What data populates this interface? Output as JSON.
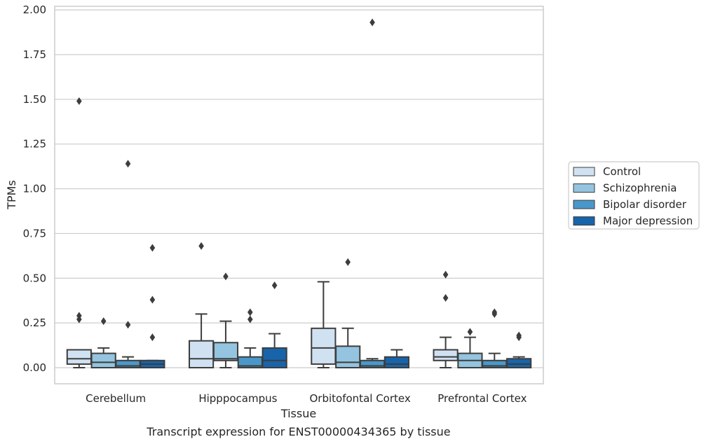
{
  "chart_data": {
    "type": "boxplot",
    "title": "",
    "caption": "Transcript expression for ENST00000434365 by tissue",
    "xlabel": "Tissue",
    "ylabel": "TPMs",
    "ylim": [
      -0.09,
      2.02
    ],
    "yticks": [
      0.0,
      0.25,
      0.5,
      0.75,
      1.0,
      1.25,
      1.5,
      1.75,
      2.0
    ],
    "ytick_labels": [
      "0.00",
      "0.25",
      "0.50",
      "0.75",
      "1.00",
      "1.25",
      "1.50",
      "1.75",
      "2.00"
    ],
    "grid": "horizontal",
    "legend_position": "right",
    "categories": [
      "Cerebellum",
      "Hipppocampus",
      "Orbitofontal Cortex",
      "Prefrontal Cortex"
    ],
    "series": [
      {
        "name": "Control",
        "color": "#d0e1f2",
        "boxes": [
          {
            "whisker_low": 0.0,
            "q1": 0.02,
            "median": 0.05,
            "q3": 0.1,
            "whisker_high": 0.1,
            "outliers": [
              0.27,
              0.29,
              1.49
            ]
          },
          {
            "whisker_low": 0.0,
            "q1": 0.0,
            "median": 0.05,
            "q3": 0.15,
            "whisker_high": 0.3,
            "outliers": [
              0.68
            ]
          },
          {
            "whisker_low": 0.0,
            "q1": 0.02,
            "median": 0.11,
            "q3": 0.22,
            "whisker_high": 0.48,
            "outliers": []
          },
          {
            "whisker_low": 0.0,
            "q1": 0.04,
            "median": 0.06,
            "q3": 0.1,
            "whisker_high": 0.17,
            "outliers": [
              0.39,
              0.52
            ]
          }
        ]
      },
      {
        "name": "Schizophrenia",
        "color": "#94c4df",
        "boxes": [
          {
            "whisker_low": 0.0,
            "q1": 0.0,
            "median": 0.03,
            "q3": 0.08,
            "whisker_high": 0.11,
            "outliers": [
              0.26
            ]
          },
          {
            "whisker_low": 0.0,
            "q1": 0.04,
            "median": 0.05,
            "q3": 0.14,
            "whisker_high": 0.26,
            "outliers": [
              0.51
            ]
          },
          {
            "whisker_low": 0.0,
            "q1": 0.0,
            "median": 0.03,
            "q3": 0.12,
            "whisker_high": 0.22,
            "outliers": [
              0.59
            ]
          },
          {
            "whisker_low": 0.0,
            "q1": 0.0,
            "median": 0.04,
            "q3": 0.08,
            "whisker_high": 0.17,
            "outliers": [
              0.2
            ]
          }
        ]
      },
      {
        "name": "Bipolar disorder",
        "color": "#4a98c9",
        "boxes": [
          {
            "whisker_low": 0.0,
            "q1": 0.0,
            "median": 0.01,
            "q3": 0.04,
            "whisker_high": 0.06,
            "outliers": [
              0.24,
              1.14
            ]
          },
          {
            "whisker_low": 0.0,
            "q1": 0.0,
            "median": 0.01,
            "q3": 0.06,
            "whisker_high": 0.11,
            "outliers": [
              0.27,
              0.31
            ]
          },
          {
            "whisker_low": 0.0,
            "q1": 0.0,
            "median": 0.01,
            "q3": 0.04,
            "whisker_high": 0.05,
            "outliers": [
              1.93
            ]
          },
          {
            "whisker_low": 0.0,
            "q1": 0.0,
            "median": 0.01,
            "q3": 0.04,
            "whisker_high": 0.08,
            "outliers": [
              0.3,
              0.31
            ]
          }
        ]
      },
      {
        "name": "Major depression",
        "color": "#1764ab",
        "boxes": [
          {
            "whisker_low": 0.0,
            "q1": 0.0,
            "median": 0.02,
            "q3": 0.04,
            "whisker_high": 0.04,
            "outliers": [
              0.17,
              0.38,
              0.67
            ]
          },
          {
            "whisker_low": 0.0,
            "q1": 0.0,
            "median": 0.04,
            "q3": 0.11,
            "whisker_high": 0.19,
            "outliers": [
              0.46
            ]
          },
          {
            "whisker_low": 0.0,
            "q1": 0.0,
            "median": 0.02,
            "q3": 0.06,
            "whisker_high": 0.1,
            "outliers": []
          },
          {
            "whisker_low": 0.0,
            "q1": 0.0,
            "median": 0.02,
            "q3": 0.05,
            "whisker_high": 0.06,
            "outliers": [
              0.17,
              0.18
            ]
          }
        ]
      }
    ],
    "colors": {
      "grid": "#cccccc",
      "box_edge": "#3d3d3d",
      "axes_edge": "#cccccc"
    }
  }
}
